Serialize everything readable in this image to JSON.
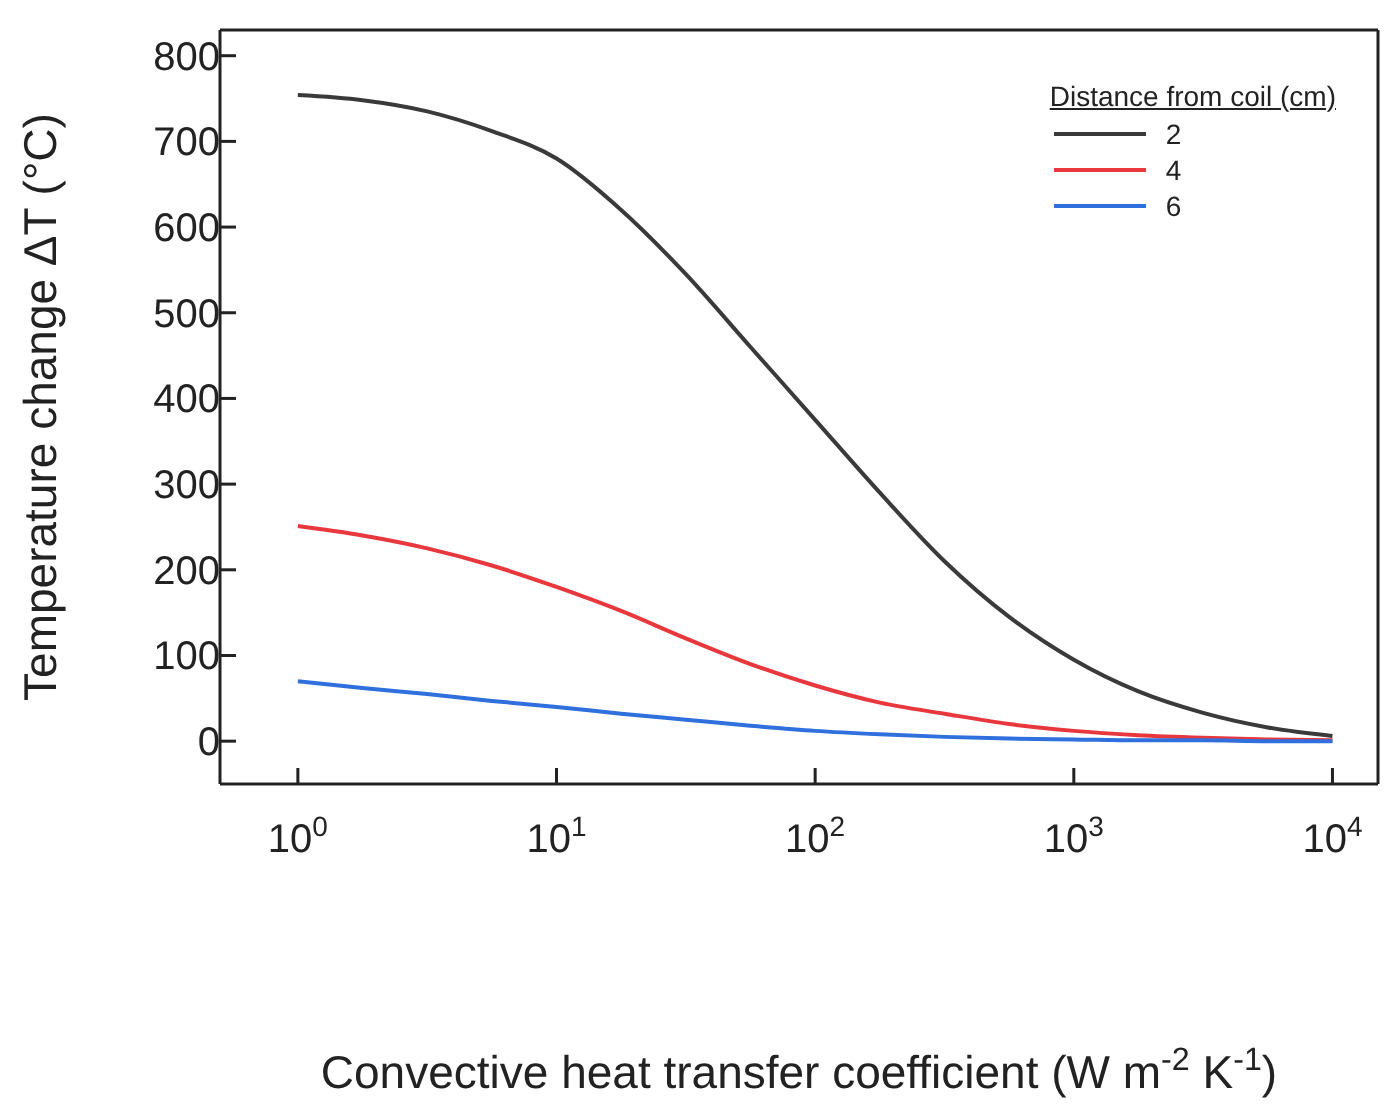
{
  "chart_data": {
    "type": "line",
    "xlabel": "Convective heat transfer coefficient (W m$^{-2}$ K$^{-1}$)",
    "ylabel": "Temperature change ΔT (°C)",
    "legend_title": "Distance from coil (cm)",
    "x": [
      1,
      1.778,
      3.162,
      5.623,
      10,
      17.78,
      31.62,
      56.23,
      100,
      177.8,
      316.2,
      562.3,
      1000,
      1778,
      3162,
      5623,
      10000
    ],
    "series": [
      {
        "name": "2",
        "color": "#3a3a3a",
        "values": [
          754,
          748,
          735,
          712,
          680,
          620,
          545,
          460,
          375,
          290,
          210,
          145,
          95,
          58,
          33,
          16,
          6
        ]
      },
      {
        "name": "4",
        "color": "#e8383d",
        "values": [
          251,
          240,
          225,
          205,
          180,
          152,
          120,
          90,
          65,
          45,
          32,
          20,
          12,
          7,
          4,
          2,
          1
        ]
      },
      {
        "name": "6",
        "color": "#2f6fde",
        "values": [
          70,
          62,
          55,
          47,
          40,
          32,
          25,
          18,
          12,
          8,
          5,
          3,
          2,
          1,
          1,
          0,
          0
        ]
      }
    ],
    "log": "x",
    "xlim": [
      0.5,
      15000
    ],
    "ylim": [
      -50,
      830
    ],
    "xticks": [
      {
        "value": 1,
        "label": "10$^{0}$"
      },
      {
        "value": 10,
        "label": "10$^{1}$"
      },
      {
        "value": 100,
        "label": "10$^{2}$"
      },
      {
        "value": 1000,
        "label": "10$^{3}$"
      },
      {
        "value": 10000,
        "label": "10$^{4}$"
      }
    ],
    "yticks": [
      0,
      100,
      200,
      300,
      400,
      500,
      600,
      700,
      800
    ],
    "legend": "top right",
    "grid": false,
    "marker": "none",
    "line_style": "solid"
  }
}
